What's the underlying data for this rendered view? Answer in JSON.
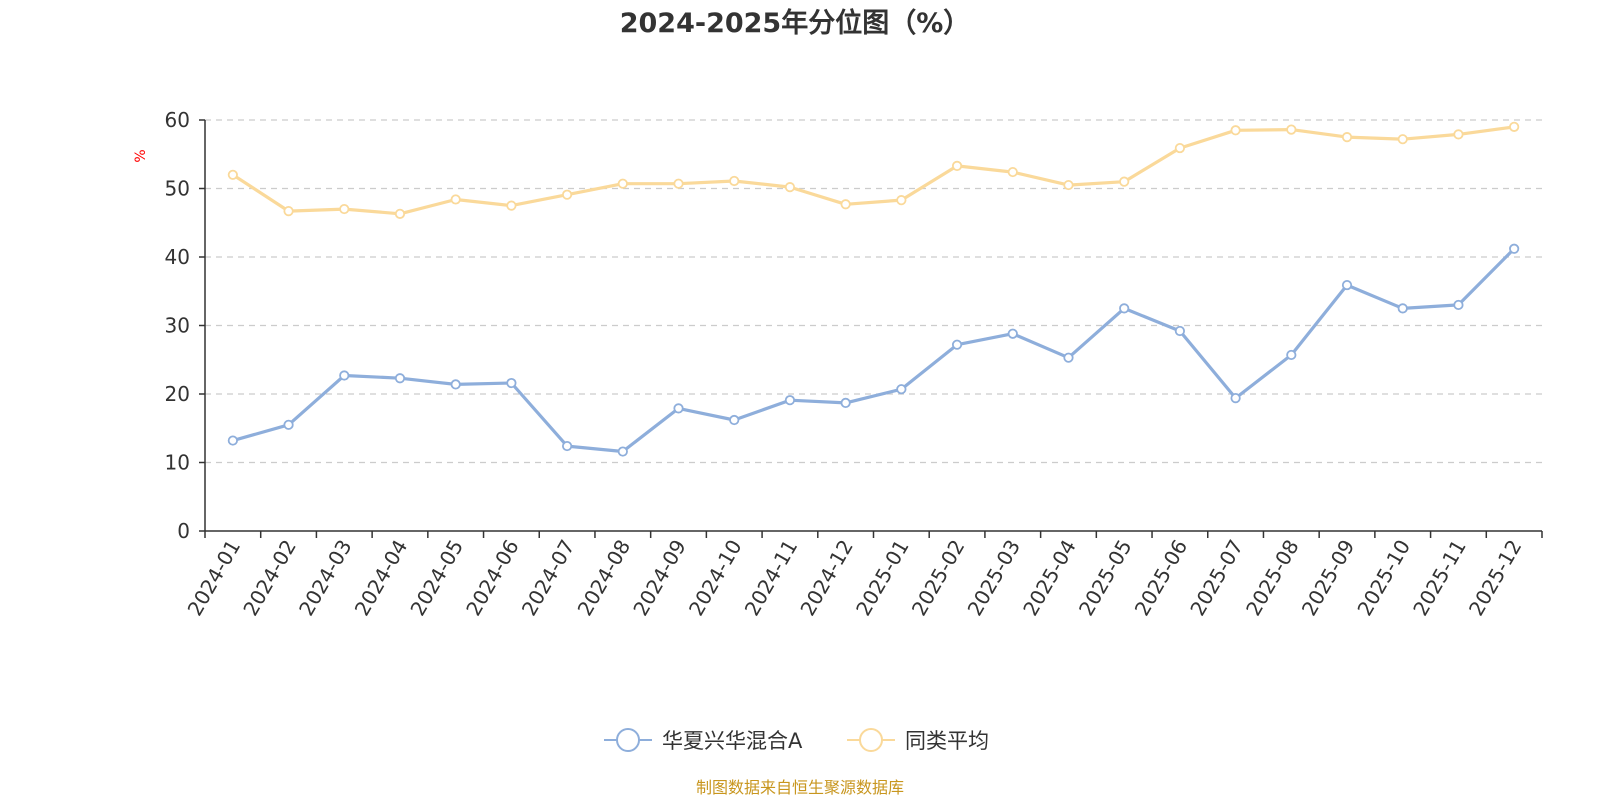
{
  "chart_data": {
    "type": "line",
    "title": "2024-2025年分位图（%）",
    "ylabel": "%",
    "xlabel": "",
    "ylim": [
      0,
      60
    ],
    "yticks": [
      0,
      10,
      20,
      30,
      40,
      50,
      60
    ],
    "grid": true,
    "legend_position": "bottom",
    "categories": [
      "2024-01",
      "2024-02",
      "2024-03",
      "2024-04",
      "2024-05",
      "2024-06",
      "2024-07",
      "2024-08",
      "2024-09",
      "2024-10",
      "2024-11",
      "2024-12",
      "2025-01",
      "2025-02",
      "2025-03",
      "2025-04",
      "2025-05",
      "2025-06",
      "2025-07",
      "2025-08",
      "2025-09",
      "2025-10",
      "2025-11",
      "2025-12"
    ],
    "series": [
      {
        "name": "华夏兴华混合A",
        "color": "#8eaedb",
        "values": [
          13.2,
          15.5,
          22.7,
          22.3,
          21.4,
          21.6,
          12.4,
          11.6,
          17.9,
          16.2,
          19.1,
          18.7,
          20.7,
          27.2,
          28.8,
          25.3,
          32.5,
          29.2,
          19.4,
          25.7,
          35.9,
          32.5,
          33.0,
          41.2
        ]
      },
      {
        "name": "同类平均",
        "color": "#fad99a",
        "values": [
          52.0,
          46.7,
          47.0,
          46.3,
          48.4,
          47.5,
          49.1,
          50.7,
          50.7,
          51.1,
          50.2,
          47.7,
          48.3,
          53.3,
          52.4,
          50.5,
          51.0,
          55.9,
          58.5,
          58.6,
          57.5,
          57.2,
          57.9,
          59.0
        ]
      }
    ]
  },
  "footer": {
    "source": "制图数据来自恒生聚源数据库"
  }
}
